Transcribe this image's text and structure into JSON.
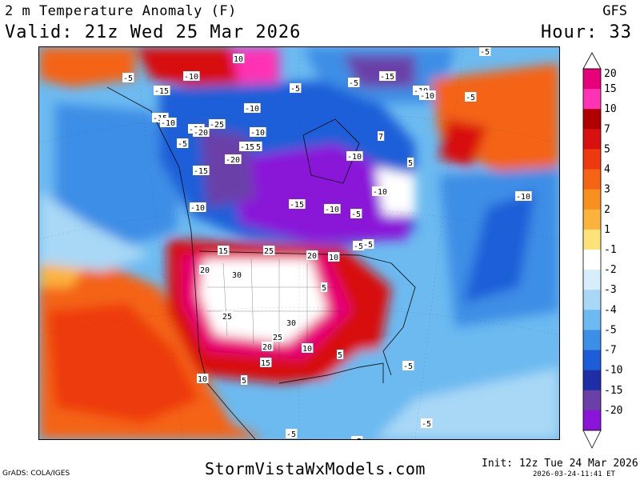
{
  "header": {
    "title": "2 m Temperature Anomaly (F)",
    "valid": "Valid: 21z Wed 25 Mar 2026",
    "model": "GFS",
    "hour": "Hour: 33"
  },
  "footer": {
    "credit": "GrADS: COLA/IGES",
    "site": "StormVistaWxModels.com",
    "init": "Init: 12z Tue 24 Mar 2026",
    "stamp": "2026-03-24-11:41 ET"
  },
  "legend": {
    "labels": [
      "20",
      "15",
      "10",
      "7",
      "5",
      "4",
      "3",
      "2",
      "1",
      "-1",
      "-2",
      "-3",
      "-4",
      "-5",
      "-7",
      "-10",
      "-15",
      "-20"
    ],
    "colors": [
      "#e8007a",
      "#ff33b4",
      "#b00000",
      "#d81010",
      "#ee3a10",
      "#f46414",
      "#f89020",
      "#fbb33c",
      "#fde27a",
      "#ffffff",
      "#d6eefb",
      "#a8d8f6",
      "#6cbaf0",
      "#3d8ee6",
      "#1c5ed8",
      "#1e2ea6",
      "#6a40a8",
      "#8a14d8"
    ]
  },
  "map_labels": [
    {
      "text": "10"
    },
    {
      "text": "-5"
    },
    {
      "text": "-10"
    },
    {
      "text": "-15"
    },
    {
      "text": "-5"
    },
    {
      "text": "-5"
    },
    {
      "text": "-15"
    },
    {
      "text": "-10"
    },
    {
      "text": "-20"
    },
    {
      "text": "-10"
    },
    {
      "text": "-25"
    },
    {
      "text": "-20"
    },
    {
      "text": "-5"
    },
    {
      "text": "-10"
    },
    {
      "text": "-15"
    },
    {
      "text": "-15"
    },
    {
      "text": "-20"
    },
    {
      "text": "-15"
    },
    {
      "text": "-10"
    },
    {
      "text": "-15"
    },
    {
      "text": "-10"
    },
    {
      "text": "-5"
    },
    {
      "text": "-10"
    },
    {
      "text": "-5"
    },
    {
      "text": "-5"
    },
    {
      "text": "-10"
    },
    {
      "text": "-15"
    },
    {
      "text": "-10"
    },
    {
      "text": "-10"
    },
    {
      "text": "-5"
    },
    {
      "text": "-5"
    },
    {
      "text": "-10"
    },
    {
      "text": "15"
    },
    {
      "text": "25"
    },
    {
      "text": "20"
    },
    {
      "text": "10"
    },
    {
      "text": "20"
    },
    {
      "text": "30"
    },
    {
      "text": "25"
    },
    {
      "text": "30"
    },
    {
      "text": "20"
    },
    {
      "text": "25"
    },
    {
      "text": "10"
    },
    {
      "text": "15"
    },
    {
      "text": "10"
    },
    {
      "text": "5"
    },
    {
      "text": "5"
    },
    {
      "text": "-5"
    },
    {
      "text": "-5"
    },
    {
      "text": "-5"
    },
    {
      "text": "-5"
    },
    {
      "text": "5"
    },
    {
      "text": "7"
    },
    {
      "text": "5"
    }
  ]
}
